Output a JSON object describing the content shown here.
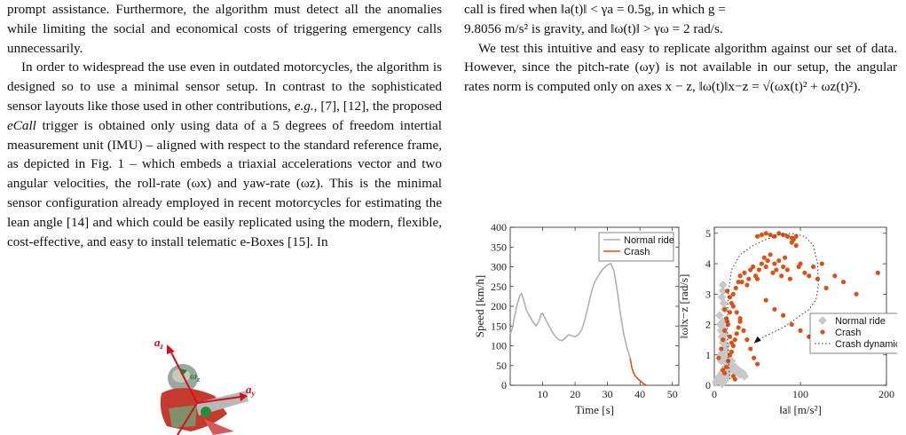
{
  "left_column": {
    "p1": "prompt assistance. Furthermore, the algorithm must detect all the anomalies while limiting the social and economical costs of triggering emergency calls unnecessarily.",
    "p2a": "In order to widespread the use even in outdated motorcycles, the algorithm is designed so to use a minimal sensor setup. In contrast to the sophisticated sensor layouts like those used in other contributions, ",
    "p2_eg": "e.g.",
    "p2b": ", [7], [12], the proposed ",
    "p2_ecall": "eCall",
    "p2c": " trigger is obtained only using data of a 5 degrees of freedom intertial measurement unit (IMU) – aligned with respect to the standard reference frame, as depicted in Fig. 1 – which embeds a triaxial accelerations vector and two angular velocities, the roll-rate (ωx) and yaw-rate (ωz). This is the minimal sensor configuration already employed in recent motorcycles for estimating the lean angle [14] and which could be easily replicated using the modern, flexible, cost-effective, and easy to install telematic e-Boxes [15]. In"
  },
  "figure1": {
    "label_az": "a",
    "label_az_sub": "z",
    "label_ay": "a",
    "label_ay_sub": "y",
    "label_wz": "ω",
    "label_wz_sub": "z"
  },
  "right_column": {
    "line1": "call is fired when ‖a(t)‖ < γa = 0.5g, in which g =",
    "line2": "9.8056 m/s² is gravity, and ‖ω(t)‖ > γω = 2 rad/s.",
    "p2": "We test this intuitive and easy to replicate algorithm against our set of data. However, since the pitch-rate (ωy) is not available in our setup, the angular rates norm is computed only on axes x − z, ‖ω(t)‖x−z = √(ωx(t)² + ωz(t)²)."
  },
  "chart_data": [
    {
      "type": "line",
      "xlabel": "Time [s]",
      "ylabel": "Speed [km/h]",
      "xlim": [
        0,
        52
      ],
      "ylim": [
        0,
        400
      ],
      "xticks": [
        10,
        20,
        30,
        40,
        50
      ],
      "yticks": [
        0,
        50,
        100,
        150,
        200,
        250,
        300,
        350,
        400
      ],
      "legend_position": "top-right",
      "series": [
        {
          "name": "Normal ride",
          "color": "#b0b0b0",
          "x": [
            0,
            0.5,
            1,
            2,
            3,
            3.5,
            4,
            4.5,
            5,
            6,
            7,
            8,
            9,
            9.5,
            10,
            11,
            12,
            13,
            14,
            15,
            16,
            17,
            18,
            19,
            20,
            21,
            22,
            23,
            24,
            25,
            26,
            27,
            28,
            29,
            30,
            31,
            32,
            33,
            34,
            35,
            36,
            37
          ],
          "y": [
            130,
            140,
            160,
            200,
            228,
            232,
            220,
            205,
            190,
            175,
            160,
            150,
            165,
            180,
            182,
            165,
            150,
            135,
            123,
            115,
            113,
            120,
            128,
            125,
            123,
            128,
            140,
            165,
            200,
            235,
            260,
            275,
            288,
            298,
            305,
            308,
            290,
            240,
            180,
            130,
            95,
            68
          ]
        },
        {
          "name": "Crash",
          "color": "#d95319",
          "x": [
            37,
            37.5,
            38,
            38.5,
            39,
            39.5,
            40,
            40.5,
            41,
            41.5,
            42
          ],
          "y": [
            68,
            45,
            32,
            24,
            20,
            15,
            12,
            8,
            5,
            2,
            0
          ]
        }
      ]
    },
    {
      "type": "scatter",
      "xlabel": "‖a‖ [m/s²]",
      "ylabel": "‖ω‖x−z [rad/s]",
      "xlim": [
        0,
        200
      ],
      "ylim": [
        0,
        5.2
      ],
      "xticks": [
        0,
        100,
        200
      ],
      "yticks": [
        0,
        1,
        2,
        3,
        4,
        5
      ],
      "legend_position": "bottom-right",
      "series": [
        {
          "name": "Normal ride",
          "color": "#c8c8c8",
          "x": [
            2,
            3,
            4,
            5,
            6,
            7,
            8,
            9,
            10,
            11,
            12,
            13,
            14,
            15,
            16,
            18,
            20,
            22,
            25,
            28,
            30,
            8,
            9,
            10,
            11,
            12,
            10,
            9,
            8,
            7,
            6,
            12,
            14,
            11,
            9,
            10,
            13,
            15,
            17,
            19,
            21,
            10,
            11,
            12,
            8,
            9,
            13,
            16,
            20,
            24,
            27,
            30,
            33,
            35,
            9,
            10,
            11,
            12,
            13,
            14,
            10,
            11
          ],
          "y": [
            0.1,
            0.15,
            0.2,
            0.25,
            0.3,
            0.2,
            0.35,
            0.4,
            0.3,
            0.5,
            0.45,
            0.6,
            0.5,
            0.4,
            0.7,
            0.55,
            0.6,
            0.5,
            0.45,
            0.4,
            0.35,
            0.8,
            1.0,
            1.2,
            0.9,
            1.1,
            1.4,
            1.6,
            1.8,
            2.0,
            2.3,
            2.5,
            1.3,
            2.7,
            2.9,
            3.1,
            0.75,
            0.85,
            0.65,
            0.7,
            0.55,
            3.3,
            1.5,
            1.7,
            0.95,
            1.05,
            1.15,
            0.9,
            0.8,
            0.6,
            0.5,
            0.45,
            0.4,
            0.3,
            0.05,
            0.1,
            0.2,
            0.15,
            0.25,
            0.3,
            2.1,
            1.9
          ]
        },
        {
          "name": "Crash",
          "color": "#d95319",
          "x": [
            5,
            8,
            10,
            12,
            15,
            18,
            20,
            22,
            25,
            28,
            30,
            32,
            35,
            38,
            40,
            42,
            45,
            48,
            50,
            52,
            55,
            58,
            60,
            62,
            65,
            68,
            70,
            72,
            75,
            78,
            80,
            82,
            85,
            88,
            90,
            92,
            95,
            98,
            100,
            105,
            110,
            115,
            120,
            125,
            130,
            140,
            150,
            165,
            190,
            50,
            55,
            60,
            65,
            70,
            75,
            80,
            85,
            90,
            95,
            12,
            14,
            16,
            18,
            20,
            22,
            24,
            26,
            28,
            30,
            15,
            18,
            22,
            26,
            30,
            34,
            38,
            42,
            46,
            50,
            10,
            12,
            14,
            16,
            18,
            20,
            22,
            24,
            60,
            70,
            80,
            90,
            100,
            110,
            120
          ],
          "y": [
            0.9,
            1.2,
            1.5,
            1.8,
            2.1,
            2.4,
            2.7,
            3.0,
            3.2,
            3.4,
            3.6,
            3.4,
            3.7,
            3.3,
            3.5,
            3.8,
            3.9,
            3.6,
            3.5,
            3.8,
            4.0,
            4.2,
            3.9,
            4.1,
            4.3,
            3.7,
            4.0,
            3.8,
            4.1,
            3.6,
            3.9,
            4.2,
            3.8,
            3.5,
            4.7,
            4.8,
            4.6,
            3.9,
            4.0,
            3.7,
            3.6,
            3.9,
            3.5,
            4.0,
            3.2,
            3.6,
            3.4,
            3.0,
            3.7,
            4.9,
            4.95,
            5.0,
            4.95,
            4.9,
            5.0,
            4.95,
            4.9,
            4.85,
            4.9,
            2.5,
            2.2,
            2.0,
            1.6,
            1.4,
            1.3,
            1.5,
            1.7,
            1.9,
            2.2,
            3.1,
            2.9,
            2.6,
            2.4,
            2.1,
            1.8,
            1.5,
            1.2,
            0.9,
            0.7,
            0.5,
            0.4,
            0.6,
            0.8,
            1.0,
            1.1,
            0.3,
            0.2,
            2.8,
            2.5,
            2.3,
            2.0,
            1.8,
            1.6,
            1.4
          ]
        },
        {
          "name": "Crash dynamics",
          "color": "#333333",
          "style": "dotted",
          "x": [
            18,
            16,
            15,
            16,
            20,
            30,
            45,
            60,
            75,
            90,
            105,
            115,
            120,
            121,
            118,
            110,
            95,
            80,
            65,
            55,
            50,
            48
          ],
          "y": [
            0.2,
            1.0,
            2.0,
            3.0,
            3.8,
            4.3,
            4.6,
            4.8,
            4.95,
            5.0,
            4.9,
            4.6,
            4.0,
            3.3,
            2.8,
            2.5,
            2.2,
            1.9,
            1.7,
            1.55,
            1.45,
            1.35
          ]
        }
      ]
    }
  ]
}
